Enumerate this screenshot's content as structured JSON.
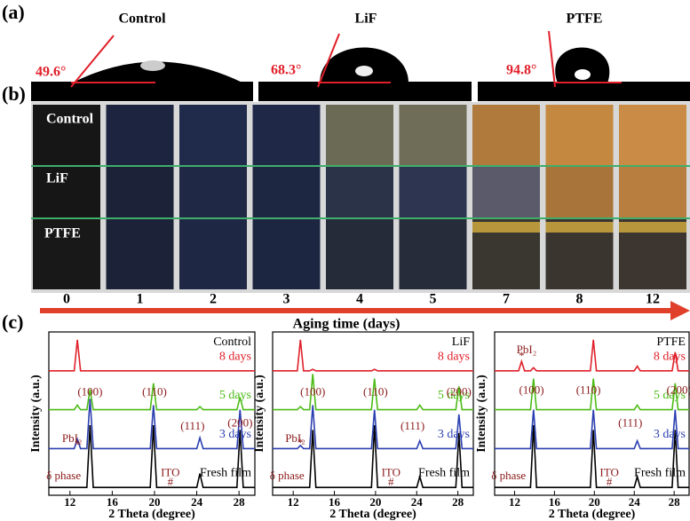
{
  "panels": {
    "a": "(a)",
    "b": "(b)",
    "c": "(c)"
  },
  "contact_angle": [
    {
      "sample": "Control",
      "angle": "49.6°"
    },
    {
      "sample": "LiF",
      "angle": "68.3°"
    },
    {
      "sample": "PTFE",
      "angle": "94.8°"
    }
  ],
  "photos": {
    "rows": [
      "Control",
      "LiF",
      "PTFE"
    ],
    "days": [
      "0",
      "1",
      "2",
      "3",
      "4",
      "5",
      "7",
      "8",
      "12"
    ],
    "axis_label": "Aging time (days)"
  },
  "chart_data": [
    {
      "type": "line",
      "title": "Control",
      "xlabel": "2 Theta (degree)",
      "ylabel": "Intensity (a.u.)",
      "x": [
        10,
        12.4,
        12.7,
        13.0,
        13.6,
        13.9,
        14.2,
        19.6,
        19.9,
        20.2,
        24.0,
        24.3,
        24.6,
        27.8,
        28.1,
        28.4,
        29.5
      ],
      "xlim": [
        10,
        29.5
      ],
      "xticks": [
        12,
        16,
        20,
        24,
        28
      ],
      "ylim": [
        0,
        105
      ],
      "series": [
        {
          "name": "Fresh film",
          "color": "#000000",
          "values": [
            5,
            5,
            5,
            5,
            5,
            45,
            5,
            5,
            45,
            5,
            5,
            14,
            5,
            5,
            42,
            5,
            5
          ]
        },
        {
          "name": "3 days",
          "color": "#2c3fb0",
          "values": [
            30,
            30,
            36,
            30,
            30,
            62,
            30,
            30,
            58,
            30,
            30,
            37,
            30,
            30,
            55,
            30,
            30
          ]
        },
        {
          "name": "5 days",
          "color": "#4cbb17",
          "values": [
            55,
            55,
            58,
            55,
            55,
            68,
            55,
            55,
            72,
            55,
            55,
            57,
            55,
            55,
            63,
            55,
            55
          ]
        },
        {
          "name": "8 days",
          "color": "#e0202a",
          "values": [
            80,
            80,
            100,
            80,
            80,
            80,
            80,
            80,
            80,
            80,
            80,
            80,
            80,
            80,
            80,
            80,
            80
          ]
        }
      ],
      "annotations": [
        "(100)",
        "(110)",
        "(111)",
        "(200)",
        "PbI₂",
        "*",
        "δ phase",
        "ITO",
        "#"
      ]
    },
    {
      "type": "line",
      "title": "LiF",
      "xlabel": "2 Theta (degree)",
      "ylabel": "Intensity (a.u.)",
      "x": [
        10,
        12.4,
        12.7,
        13.0,
        13.6,
        13.9,
        14.2,
        19.6,
        19.9,
        20.2,
        24.0,
        24.3,
        24.6,
        27.8,
        28.1,
        28.4,
        29.5
      ],
      "xlim": [
        10,
        29.5
      ],
      "xticks": [
        12,
        16,
        20,
        24,
        28
      ],
      "ylim": [
        0,
        105
      ],
      "series": [
        {
          "name": "Fresh film",
          "color": "#000000",
          "values": [
            5,
            5,
            5,
            5,
            5,
            42,
            5,
            5,
            45,
            5,
            5,
            12,
            5,
            5,
            40,
            5,
            5
          ]
        },
        {
          "name": "3 days",
          "color": "#2c3fb0",
          "values": [
            30,
            30,
            32,
            30,
            30,
            58,
            30,
            30,
            55,
            30,
            30,
            35,
            30,
            30,
            52,
            30,
            30
          ]
        },
        {
          "name": "5 days",
          "color": "#4cbb17",
          "values": [
            55,
            55,
            57,
            55,
            55,
            78,
            55,
            55,
            75,
            55,
            55,
            58,
            55,
            55,
            70,
            55,
            55
          ]
        },
        {
          "name": "8 days",
          "color": "#e0202a",
          "values": [
            80,
            80,
            100,
            80,
            80,
            81,
            80,
            80,
            81,
            80,
            80,
            80,
            80,
            80,
            80,
            80,
            80
          ]
        }
      ],
      "annotations": [
        "(100)",
        "(110)",
        "(111)",
        "(200)",
        "PbI₂",
        "*",
        "δ phase",
        "ITO",
        "#"
      ]
    },
    {
      "type": "line",
      "title": "PTFE",
      "xlabel": "2 Theta (degree)",
      "ylabel": "Intensity (a.u.)",
      "x": [
        10,
        12.4,
        12.7,
        13.0,
        13.6,
        13.9,
        14.2,
        19.6,
        19.9,
        20.2,
        24.0,
        24.3,
        24.6,
        27.8,
        28.1,
        28.4,
        29.5
      ],
      "xlim": [
        10,
        29.5
      ],
      "xticks": [
        12,
        16,
        20,
        24,
        28
      ],
      "ylim": [
        0,
        105
      ],
      "series": [
        {
          "name": "Fresh film",
          "color": "#000000",
          "values": [
            5,
            5,
            5,
            5,
            5,
            45,
            5,
            5,
            42,
            5,
            5,
            12,
            5,
            5,
            42,
            5,
            5
          ]
        },
        {
          "name": "3 days",
          "color": "#2c3fb0",
          "values": [
            30,
            30,
            30,
            30,
            30,
            55,
            30,
            30,
            55,
            30,
            30,
            35,
            30,
            30,
            55,
            30,
            30
          ]
        },
        {
          "name": "5 days",
          "color": "#4cbb17",
          "values": [
            55,
            55,
            55,
            55,
            55,
            75,
            55,
            55,
            75,
            55,
            55,
            58,
            55,
            55,
            72,
            55,
            55
          ]
        },
        {
          "name": "8 days",
          "color": "#e0202a",
          "values": [
            80,
            80,
            86,
            80,
            80,
            82,
            80,
            80,
            100,
            80,
            80,
            83,
            80,
            80,
            92,
            80,
            80
          ]
        }
      ],
      "annotations": [
        "(100)",
        "(110)",
        "(111)",
        "(200)",
        "PbI₂",
        "*",
        "δ phase",
        "ITO",
        "#"
      ]
    }
  ]
}
